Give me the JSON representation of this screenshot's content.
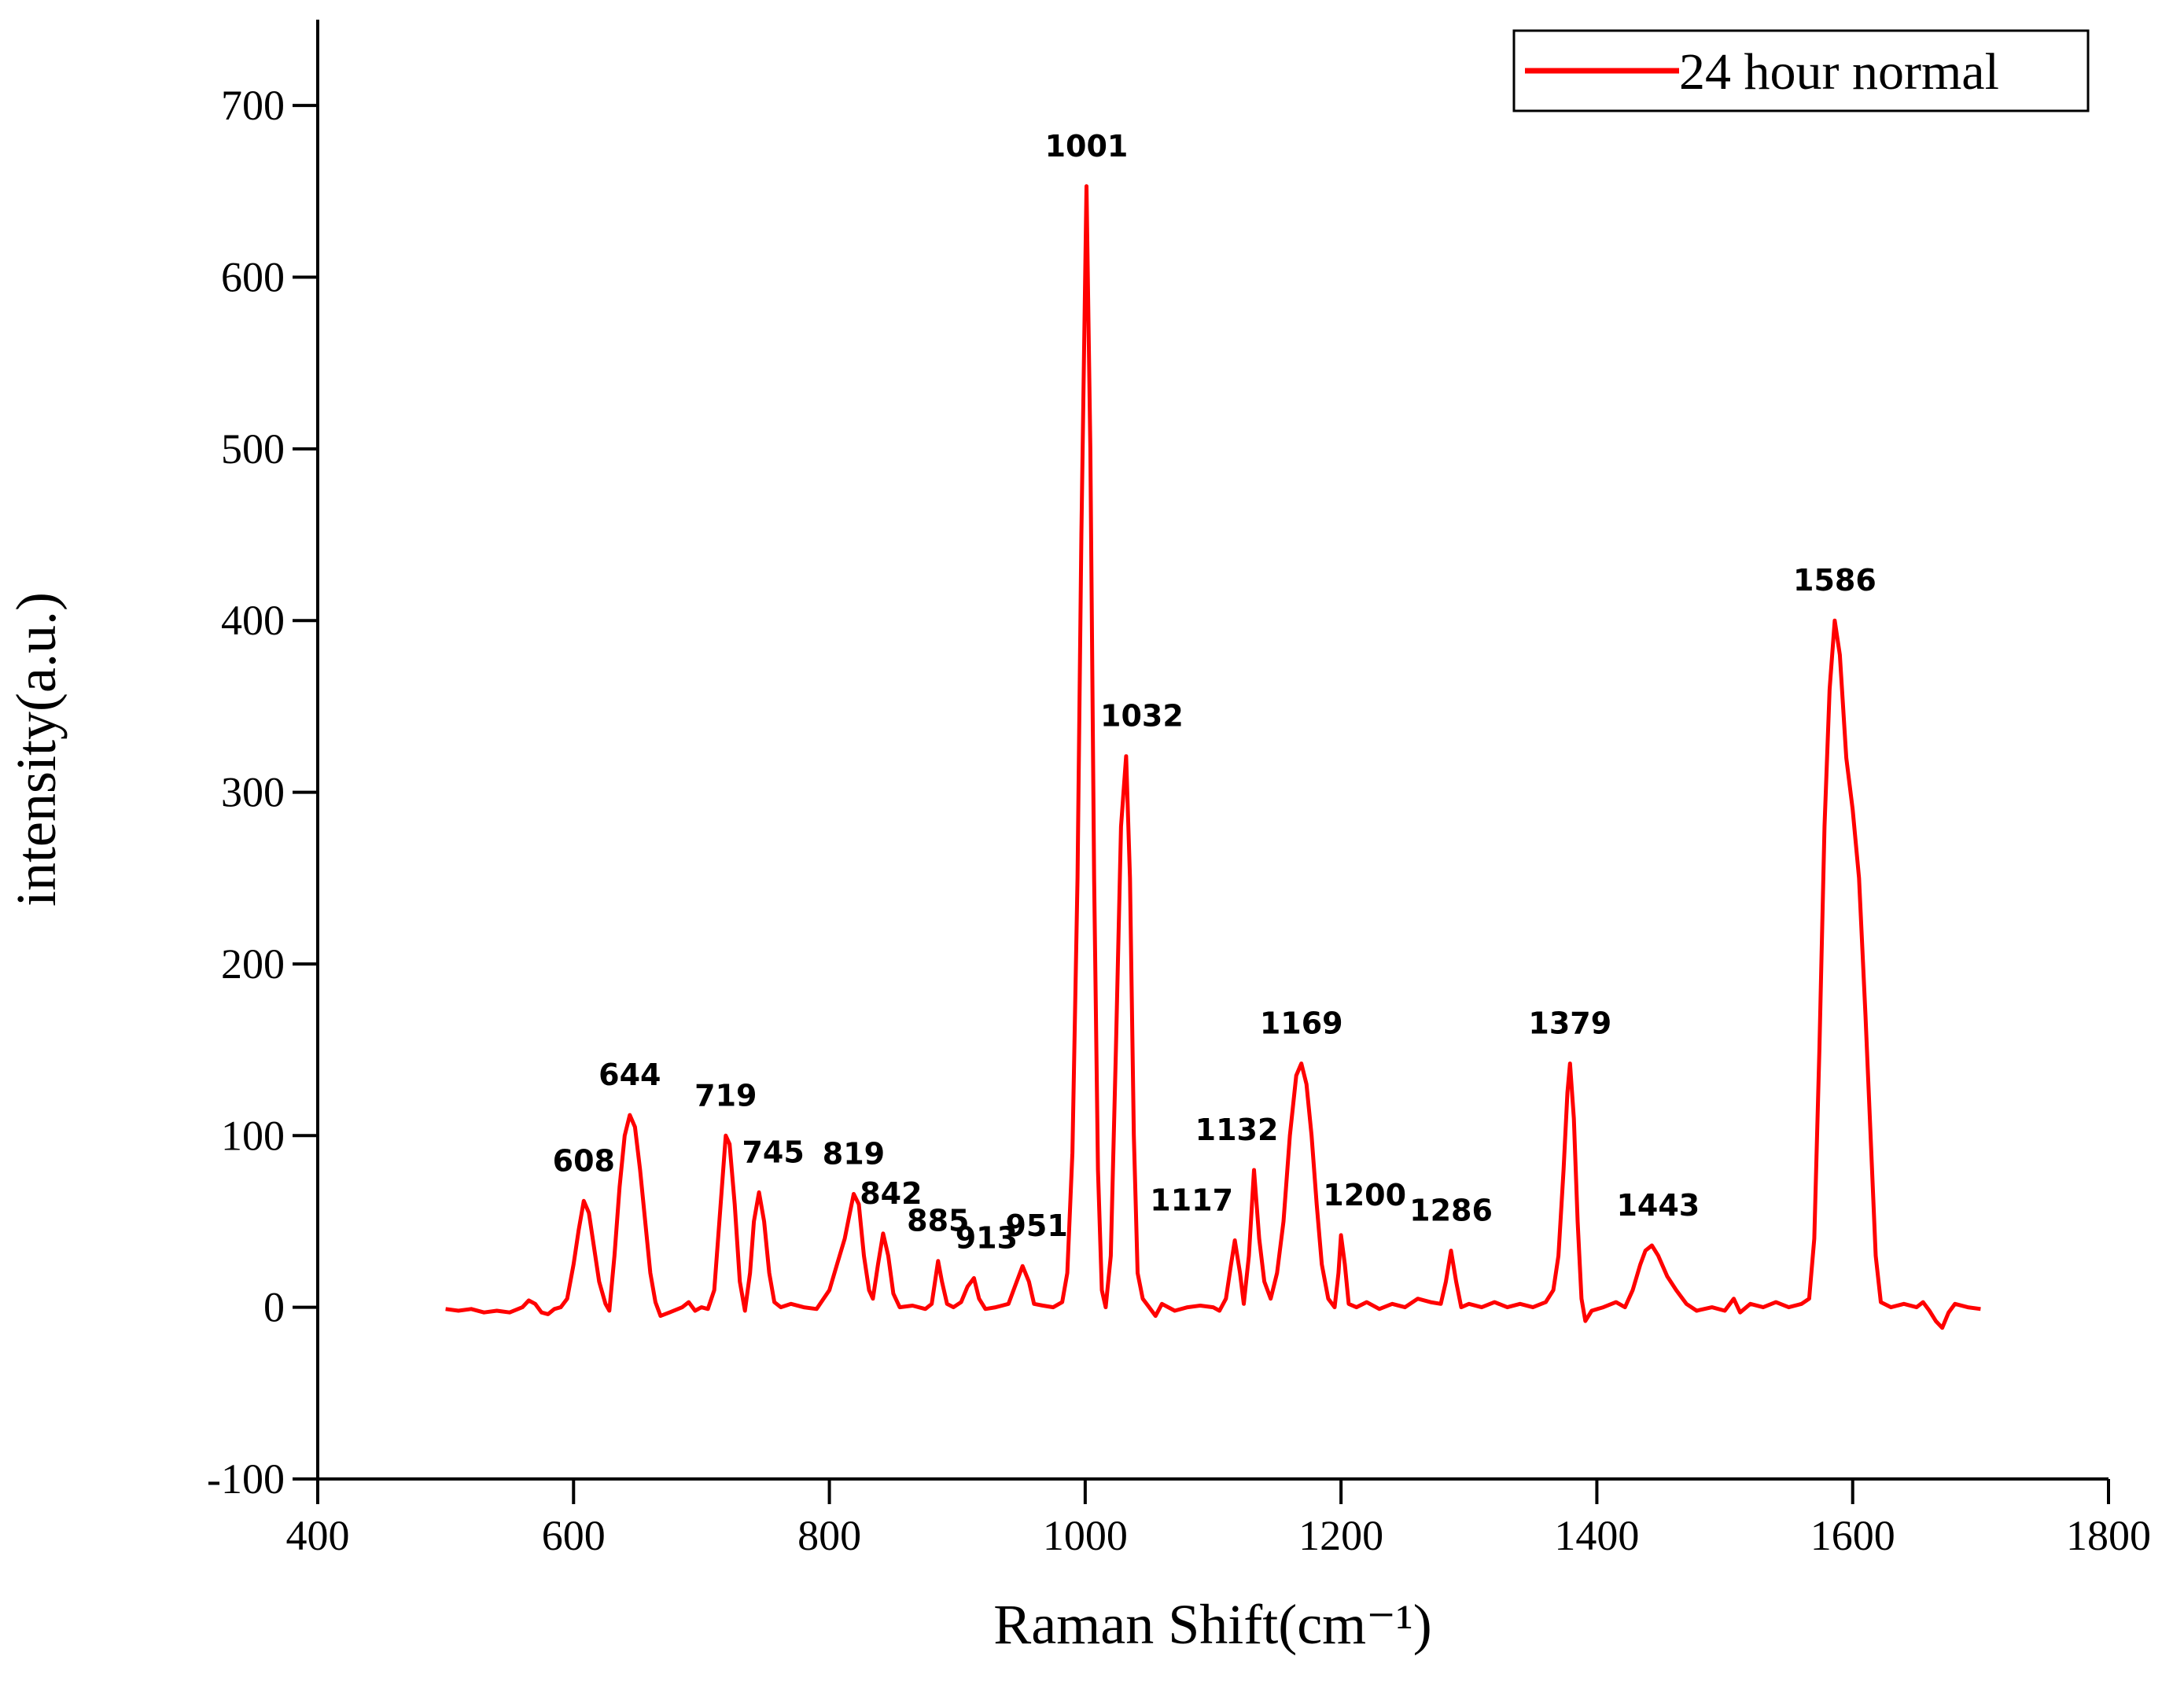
{
  "chart_data": {
    "type": "line",
    "xlabel": "Raman Shift(cm⁻¹)",
    "ylabel": "intensity(a.u.)",
    "xlim": [
      400,
      1800
    ],
    "xticks": [
      400,
      600,
      800,
      1000,
      1200,
      1400,
      1600,
      1800
    ],
    "ylim": [
      -100,
      750
    ],
    "yticks": [
      -100,
      0,
      100,
      200,
      300,
      400,
      500,
      600,
      700
    ],
    "legend": "top-right",
    "x": [
      500,
      510,
      520,
      530,
      540,
      550,
      560,
      565,
      570,
      575,
      580,
      585,
      590,
      595,
      600,
      604,
      608,
      612,
      616,
      620,
      625,
      628,
      632,
      636,
      640,
      644,
      648,
      652,
      656,
      660,
      664,
      668,
      675,
      685,
      690,
      695,
      700,
      705,
      710,
      714,
      719,
      722,
      726,
      730,
      734,
      738,
      741,
      745,
      749,
      753,
      757,
      762,
      770,
      780,
      790,
      800,
      806,
      812,
      816,
      819,
      823,
      827,
      831,
      834,
      838,
      842,
      846,
      850,
      855,
      865,
      875,
      880,
      885,
      888,
      892,
      897,
      903,
      908,
      913,
      917,
      922,
      930,
      940,
      945,
      951,
      956,
      960,
      967,
      975,
      982,
      986,
      990,
      994,
      997,
      1001,
      1004,
      1007,
      1010,
      1013,
      1016,
      1020,
      1024,
      1028,
      1032,
      1035,
      1038,
      1041,
      1045,
      1050,
      1055,
      1060,
      1070,
      1080,
      1090,
      1100,
      1105,
      1110,
      1114,
      1117,
      1121,
      1124,
      1128,
      1132,
      1136,
      1140,
      1145,
      1150,
      1155,
      1160,
      1165,
      1169,
      1173,
      1177,
      1181,
      1185,
      1190,
      1195,
      1198,
      1200,
      1203,
      1206,
      1212,
      1220,
      1230,
      1240,
      1250,
      1260,
      1270,
      1278,
      1282,
      1286,
      1290,
      1294,
      1300,
      1310,
      1320,
      1330,
      1340,
      1350,
      1360,
      1366,
      1370,
      1374,
      1377,
      1379,
      1382,
      1385,
      1388,
      1391,
      1396,
      1405,
      1415,
      1422,
      1428,
      1434,
      1438,
      1443,
      1448,
      1455,
      1462,
      1470,
      1478,
      1490,
      1500,
      1507,
      1512,
      1520,
      1530,
      1540,
      1550,
      1560,
      1566,
      1570,
      1574,
      1578,
      1582,
      1586,
      1590,
      1595,
      1600,
      1605,
      1610,
      1614,
      1618,
      1622,
      1630,
      1640,
      1650,
      1655,
      1660,
      1665,
      1670,
      1675,
      1680,
      1690,
      1700
    ],
    "series": [
      {
        "name": "24 hour normal",
        "color": "#ff0000",
        "values": [
          -1,
          -2,
          -1,
          -3,
          -2,
          -3,
          0,
          4,
          2,
          -3,
          -4,
          -1,
          0,
          5,
          25,
          45,
          62,
          55,
          35,
          15,
          2,
          -2,
          30,
          70,
          100,
          112,
          105,
          80,
          50,
          20,
          3,
          -5,
          -3,
          0,
          3,
          -2,
          0,
          -1,
          10,
          50,
          100,
          95,
          60,
          15,
          -2,
          20,
          50,
          67,
          50,
          20,
          3,
          0,
          2,
          0,
          -1,
          10,
          25,
          40,
          55,
          66,
          60,
          30,
          10,
          5,
          25,
          43,
          30,
          8,
          0,
          1,
          -1,
          2,
          27,
          15,
          2,
          0,
          3,
          12,
          17,
          5,
          -1,
          0,
          2,
          12,
          24,
          15,
          2,
          1,
          0,
          3,
          20,
          90,
          250,
          450,
          653,
          500,
          250,
          80,
          10,
          0,
          30,
          150,
          280,
          321,
          250,
          100,
          20,
          5,
          0,
          -5,
          2,
          -2,
          0,
          1,
          0,
          -2,
          5,
          25,
          39,
          20,
          2,
          30,
          80,
          40,
          15,
          5,
          20,
          50,
          100,
          135,
          142,
          130,
          100,
          60,
          25,
          5,
          0,
          20,
          42,
          25,
          2,
          0,
          3,
          -1,
          2,
          0,
          5,
          3,
          2,
          15,
          33,
          15,
          0,
          2,
          0,
          3,
          0,
          2,
          0,
          3,
          10,
          30,
          80,
          125,
          142,
          110,
          50,
          5,
          -8,
          -2,
          0,
          3,
          0,
          10,
          25,
          33,
          36,
          30,
          18,
          10,
          2,
          -2,
          0,
          -2,
          5,
          -3,
          2,
          0,
          3,
          0,
          2,
          5,
          40,
          150,
          280,
          360,
          400,
          380,
          320,
          290,
          250,
          170,
          100,
          30,
          3,
          0,
          2,
          0,
          3,
          -2,
          -8,
          -12,
          -3,
          2,
          0,
          -1
        ]
      }
    ],
    "peak_labels": [
      608,
      644,
      719,
      745,
      819,
      842,
      885,
      913,
      951,
      1001,
      1032,
      1117,
      1132,
      1169,
      1200,
      1286,
      1379,
      1443,
      1586
    ]
  }
}
